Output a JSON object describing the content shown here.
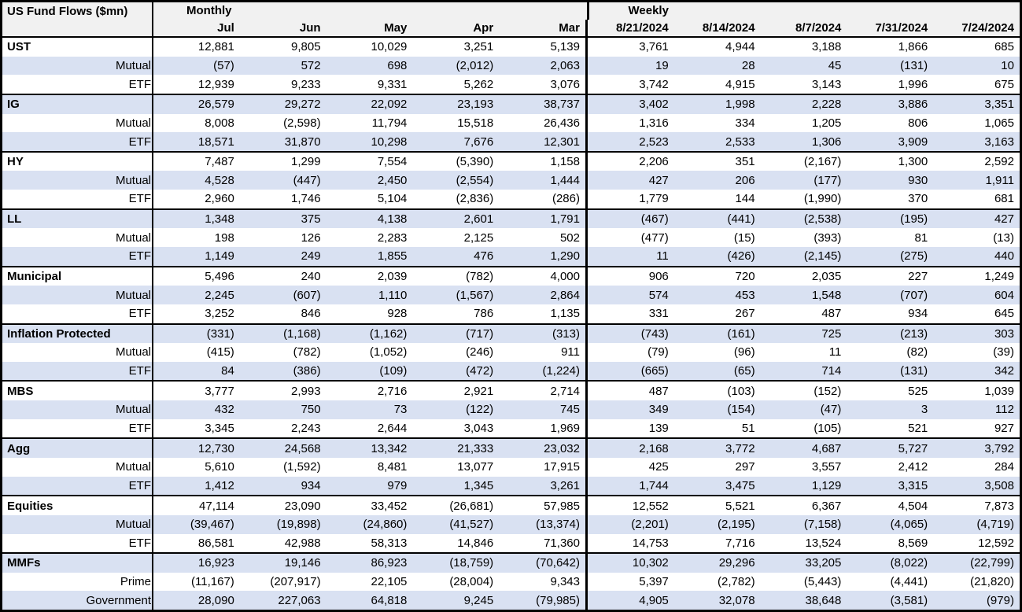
{
  "colors": {
    "band_blue": "#d9e1f2",
    "header_gray": "#f1f1f1",
    "border_black": "#000000",
    "background_white": "#ffffff"
  },
  "table": {
    "title": "US Fund Flows ($mn)",
    "sections": [
      {
        "label": "Monthly",
        "columns": [
          "Jul",
          "Jun",
          "May",
          "Apr",
          "Mar"
        ]
      },
      {
        "label": "Weekly",
        "columns": [
          "8/21/2024",
          "8/14/2024",
          "8/7/2024",
          "7/31/2024",
          "7/24/2024"
        ]
      }
    ],
    "groups": [
      {
        "name": "UST",
        "rows": [
          {
            "label": "UST",
            "is_group_header": true,
            "monthly": [
              "12,881",
              "9,805",
              "10,029",
              "3,251",
              "5,139"
            ],
            "weekly": [
              "3,761",
              "4,944",
              "3,188",
              "1,866",
              "685"
            ]
          },
          {
            "label": "Mutual",
            "is_group_header": false,
            "monthly": [
              "(57)",
              "572",
              "698",
              "(2,012)",
              "2,063"
            ],
            "weekly": [
              "19",
              "28",
              "45",
              "(131)",
              "10"
            ]
          },
          {
            "label": "ETF",
            "is_group_header": false,
            "monthly": [
              "12,939",
              "9,233",
              "9,331",
              "5,262",
              "3,076"
            ],
            "weekly": [
              "3,742",
              "4,915",
              "3,143",
              "1,996",
              "675"
            ]
          }
        ]
      },
      {
        "name": "IG",
        "rows": [
          {
            "label": "IG",
            "is_group_header": true,
            "monthly": [
              "26,579",
              "29,272",
              "22,092",
              "23,193",
              "38,737"
            ],
            "weekly": [
              "3,402",
              "1,998",
              "2,228",
              "3,886",
              "3,351"
            ]
          },
          {
            "label": "Mutual",
            "is_group_header": false,
            "monthly": [
              "8,008",
              "(2,598)",
              "11,794",
              "15,518",
              "26,436"
            ],
            "weekly": [
              "1,316",
              "334",
              "1,205",
              "806",
              "1,065"
            ]
          },
          {
            "label": "ETF",
            "is_group_header": false,
            "monthly": [
              "18,571",
              "31,870",
              "10,298",
              "7,676",
              "12,301"
            ],
            "weekly": [
              "2,523",
              "2,533",
              "1,306",
              "3,909",
              "3,163"
            ]
          }
        ]
      },
      {
        "name": "HY",
        "rows": [
          {
            "label": "HY",
            "is_group_header": true,
            "monthly": [
              "7,487",
              "1,299",
              "7,554",
              "(5,390)",
              "1,158"
            ],
            "weekly": [
              "2,206",
              "351",
              "(2,167)",
              "1,300",
              "2,592"
            ]
          },
          {
            "label": "Mutual",
            "is_group_header": false,
            "monthly": [
              "4,528",
              "(447)",
              "2,450",
              "(2,554)",
              "1,444"
            ],
            "weekly": [
              "427",
              "206",
              "(177)",
              "930",
              "1,911"
            ]
          },
          {
            "label": "ETF",
            "is_group_header": false,
            "monthly": [
              "2,960",
              "1,746",
              "5,104",
              "(2,836)",
              "(286)"
            ],
            "weekly": [
              "1,779",
              "144",
              "(1,990)",
              "370",
              "681"
            ]
          }
        ]
      },
      {
        "name": "LL",
        "rows": [
          {
            "label": "LL",
            "is_group_header": true,
            "monthly": [
              "1,348",
              "375",
              "4,138",
              "2,601",
              "1,791"
            ],
            "weekly": [
              "(467)",
              "(441)",
              "(2,538)",
              "(195)",
              "427"
            ]
          },
          {
            "label": "Mutual",
            "is_group_header": false,
            "monthly": [
              "198",
              "126",
              "2,283",
              "2,125",
              "502"
            ],
            "weekly": [
              "(477)",
              "(15)",
              "(393)",
              "81",
              "(13)"
            ]
          },
          {
            "label": "ETF",
            "is_group_header": false,
            "monthly": [
              "1,149",
              "249",
              "1,855",
              "476",
              "1,290"
            ],
            "weekly": [
              "11",
              "(426)",
              "(2,145)",
              "(275)",
              "440"
            ]
          }
        ]
      },
      {
        "name": "Municipal",
        "rows": [
          {
            "label": "Municipal",
            "is_group_header": true,
            "monthly": [
              "5,496",
              "240",
              "2,039",
              "(782)",
              "4,000"
            ],
            "weekly": [
              "906",
              "720",
              "2,035",
              "227",
              "1,249"
            ]
          },
          {
            "label": "Mutual",
            "is_group_header": false,
            "monthly": [
              "2,245",
              "(607)",
              "1,110",
              "(1,567)",
              "2,864"
            ],
            "weekly": [
              "574",
              "453",
              "1,548",
              "(707)",
              "604"
            ]
          },
          {
            "label": "ETF",
            "is_group_header": false,
            "monthly": [
              "3,252",
              "846",
              "928",
              "786",
              "1,135"
            ],
            "weekly": [
              "331",
              "267",
              "487",
              "934",
              "645"
            ]
          }
        ]
      },
      {
        "name": "Inflation Protected",
        "rows": [
          {
            "label": "Inflation Protected",
            "is_group_header": true,
            "monthly": [
              "(331)",
              "(1,168)",
              "(1,162)",
              "(717)",
              "(313)"
            ],
            "weekly": [
              "(743)",
              "(161)",
              "725",
              "(213)",
              "303"
            ]
          },
          {
            "label": "Mutual",
            "is_group_header": false,
            "monthly": [
              "(415)",
              "(782)",
              "(1,052)",
              "(246)",
              "911"
            ],
            "weekly": [
              "(79)",
              "(96)",
              "11",
              "(82)",
              "(39)"
            ]
          },
          {
            "label": "ETF",
            "is_group_header": false,
            "monthly": [
              "84",
              "(386)",
              "(109)",
              "(472)",
              "(1,224)"
            ],
            "weekly": [
              "(665)",
              "(65)",
              "714",
              "(131)",
              "342"
            ]
          }
        ]
      },
      {
        "name": "MBS",
        "rows": [
          {
            "label": "MBS",
            "is_group_header": true,
            "monthly": [
              "3,777",
              "2,993",
              "2,716",
              "2,921",
              "2,714"
            ],
            "weekly": [
              "487",
              "(103)",
              "(152)",
              "525",
              "1,039"
            ]
          },
          {
            "label": "Mutual",
            "is_group_header": false,
            "monthly": [
              "432",
              "750",
              "73",
              "(122)",
              "745"
            ],
            "weekly": [
              "349",
              "(154)",
              "(47)",
              "3",
              "112"
            ]
          },
          {
            "label": "ETF",
            "is_group_header": false,
            "monthly": [
              "3,345",
              "2,243",
              "2,644",
              "3,043",
              "1,969"
            ],
            "weekly": [
              "139",
              "51",
              "(105)",
              "521",
              "927"
            ]
          }
        ]
      },
      {
        "name": "Agg",
        "rows": [
          {
            "label": "Agg",
            "is_group_header": true,
            "monthly": [
              "12,730",
              "24,568",
              "13,342",
              "21,333",
              "23,032"
            ],
            "weekly": [
              "2,168",
              "3,772",
              "4,687",
              "5,727",
              "3,792"
            ]
          },
          {
            "label": "Mutual",
            "is_group_header": false,
            "monthly": [
              "5,610",
              "(1,592)",
              "8,481",
              "13,077",
              "17,915"
            ],
            "weekly": [
              "425",
              "297",
              "3,557",
              "2,412",
              "284"
            ]
          },
          {
            "label": "ETF",
            "is_group_header": false,
            "monthly": [
              "1,412",
              "934",
              "979",
              "1,345",
              "3,261"
            ],
            "weekly": [
              "1,744",
              "3,475",
              "1,129",
              "3,315",
              "3,508"
            ]
          }
        ]
      },
      {
        "name": "Equities",
        "rows": [
          {
            "label": "Equities",
            "is_group_header": true,
            "monthly": [
              "47,114",
              "23,090",
              "33,452",
              "(26,681)",
              "57,985"
            ],
            "weekly": [
              "12,552",
              "5,521",
              "6,367",
              "4,504",
              "7,873"
            ]
          },
          {
            "label": "Mutual",
            "is_group_header": false,
            "monthly": [
              "(39,467)",
              "(19,898)",
              "(24,860)",
              "(41,527)",
              "(13,374)"
            ],
            "weekly": [
              "(2,201)",
              "(2,195)",
              "(7,158)",
              "(4,065)",
              "(4,719)"
            ]
          },
          {
            "label": "ETF",
            "is_group_header": false,
            "monthly": [
              "86,581",
              "42,988",
              "58,313",
              "14,846",
              "71,360"
            ],
            "weekly": [
              "14,753",
              "7,716",
              "13,524",
              "8,569",
              "12,592"
            ]
          }
        ]
      },
      {
        "name": "MMFs",
        "rows": [
          {
            "label": "MMFs",
            "is_group_header": true,
            "monthly": [
              "16,923",
              "19,146",
              "86,923",
              "(18,759)",
              "(70,642)"
            ],
            "weekly": [
              "10,302",
              "29,296",
              "33,205",
              "(8,022)",
              "(22,799)"
            ]
          },
          {
            "label": "Prime",
            "is_group_header": false,
            "monthly": [
              "(11,167)",
              "(207,917)",
              "22,105",
              "(28,004)",
              "9,343"
            ],
            "weekly": [
              "5,397",
              "(2,782)",
              "(5,443)",
              "(4,441)",
              "(21,820)"
            ]
          },
          {
            "label": "Government",
            "is_group_header": false,
            "monthly": [
              "28,090",
              "227,063",
              "64,818",
              "9,245",
              "(79,985)"
            ],
            "weekly": [
              "4,905",
              "32,078",
              "38,648",
              "(3,581)",
              "(979)"
            ]
          }
        ]
      }
    ]
  }
}
